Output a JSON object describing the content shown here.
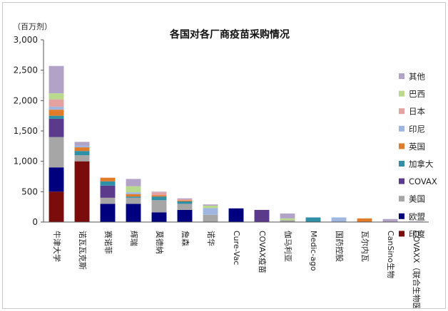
{
  "chart_data": {
    "type": "bar",
    "stacked": true,
    "title": "各国对各厂商疫苗采购情况",
    "unit_label": "（百万剂）",
    "ylim": [
      0,
      3000
    ],
    "yticks": [
      "0",
      "500",
      "1,000",
      "1,500",
      "2,000",
      "2,500",
      "3,000"
    ],
    "grid": false,
    "legend_position": "right",
    "categories": [
      "牛津大学",
      "诺瓦瓦克斯",
      "赛诺菲",
      "辉瑞",
      "莫德纳",
      "詹森",
      "诺华",
      "Cure-Vac",
      "COVAX疫苗",
      "伽马利亚",
      "Medic-ago",
      "国药控股",
      "瓦尔内瓦",
      "CanSino生物",
      "COVAXX（联合生物医学）"
    ],
    "series": [
      {
        "name": "印度",
        "color": "#7a0c0c",
        "values": [
          500,
          1000,
          0,
          0,
          0,
          0,
          0,
          0,
          0,
          0,
          0,
          0,
          0,
          0,
          0
        ]
      },
      {
        "name": "欧盟",
        "color": "#00007f",
        "values": [
          400,
          0,
          300,
          300,
          160,
          200,
          0,
          225,
          0,
          0,
          0,
          0,
          0,
          0,
          0
        ]
      },
      {
        "name": "美国",
        "color": "#a6a6a6",
        "values": [
          500,
          100,
          100,
          100,
          200,
          100,
          120,
          0,
          0,
          30,
          0,
          0,
          0,
          0,
          0
        ]
      },
      {
        "name": "COVAX",
        "color": "#5b3a8c",
        "values": [
          300,
          0,
          200,
          0,
          0,
          0,
          0,
          0,
          200,
          0,
          0,
          0,
          0,
          0,
          0
        ]
      },
      {
        "name": "加拿大",
        "color": "#2e8fa6",
        "values": [
          50,
          70,
          70,
          20,
          60,
          40,
          0,
          0,
          0,
          0,
          76,
          0,
          0,
          0,
          0
        ]
      },
      {
        "name": "英国",
        "color": "#e07b2a",
        "values": [
          100,
          60,
          60,
          40,
          20,
          15,
          0,
          0,
          0,
          0,
          0,
          0,
          60,
          0,
          0
        ]
      },
      {
        "name": "印尼",
        "color": "#9fb7e0",
        "values": [
          50,
          30,
          0,
          30,
          0,
          0,
          110,
          0,
          0,
          0,
          0,
          76,
          0,
          0,
          0
        ]
      },
      {
        "name": "日本",
        "color": "#e3a1a1",
        "values": [
          120,
          0,
          0,
          0,
          50,
          20,
          0,
          0,
          0,
          0,
          0,
          0,
          0,
          0,
          0
        ]
      },
      {
        "name": "巴西",
        "color": "#b9d98c",
        "values": [
          100,
          0,
          0,
          100,
          0,
          0,
          40,
          0,
          0,
          30,
          0,
          0,
          0,
          0,
          0
        ]
      },
      {
        "name": "其他",
        "color": "#b3a2c8",
        "values": [
          450,
          60,
          0,
          120,
          10,
          15,
          20,
          0,
          0,
          80,
          0,
          0,
          0,
          50,
          10
        ]
      }
    ]
  }
}
